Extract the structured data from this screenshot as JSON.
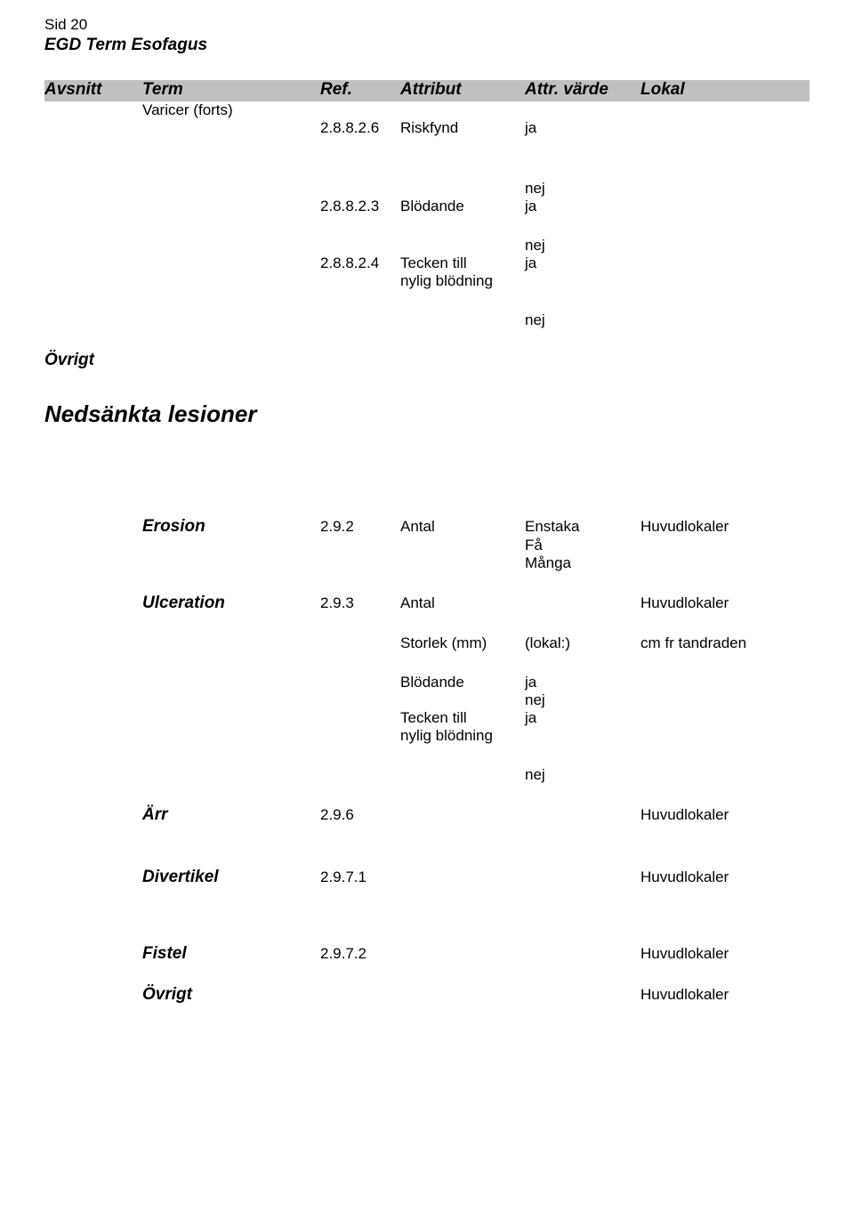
{
  "page": {
    "sid": "Sid 20",
    "doc_title": "EGD Term Esofagus"
  },
  "header": {
    "avsnitt": "Avsnitt",
    "term": "Term",
    "ref": "Ref.",
    "attribut": "Attribut",
    "attr_varde": "Attr. värde",
    "lokal": "Lokal"
  },
  "rows": {
    "varicer_term": "Varicer (forts)",
    "varicer": {
      "riskfynd_ref": "2.8.8.2.6",
      "riskfynd_attr": "Riskfynd",
      "riskfynd_val": "ja",
      "blodande_ref": "2.8.8.2.3",
      "blodande_attr": "Blödande",
      "blodande_val_nej": "nej",
      "blodande_val_ja": "ja",
      "tecken_ref": "2.8.8.2.4",
      "tecken_attr_l1": "Tecken till",
      "tecken_attr_l2": "nylig blödning",
      "tecken_val_nej": "nej",
      "tecken_val_ja": "ja",
      "tecken_trailing_nej": "nej"
    },
    "ovrigt1": "Övrigt",
    "section_nedsankta": "Nedsänkta lesioner",
    "erosion": {
      "term": "Erosion",
      "ref": "2.9.2",
      "attr": "Antal",
      "val1": "Enstaka",
      "val2": "Få",
      "val3": "Många",
      "lokal": "Huvudlokaler"
    },
    "ulceration": {
      "term": "Ulceration",
      "ref": "2.9.3",
      "attr": "Antal",
      "lokal": "Huvudlokaler",
      "storlek_attr": "Storlek (mm)",
      "storlek_val": "(lokal:)",
      "storlek_lokal": "cm fr tandraden",
      "blodande_attr": "Blödande",
      "blodande_ja": "ja",
      "blodande_nej": "nej",
      "tecken_l1": "Tecken till",
      "tecken_l2": "nylig blödning",
      "tecken_ja": "ja",
      "tecken_trailing_nej": "nej"
    },
    "arr": {
      "term": "Ärr",
      "ref": "2.9.6",
      "lokal": "Huvudlokaler"
    },
    "divertikel": {
      "term": "Divertikel",
      "ref": "2.9.7.1",
      "lokal": "Huvudlokaler"
    },
    "fistel": {
      "term": "Fistel",
      "ref": "2.9.7.2",
      "lokal": "Huvudlokaler"
    },
    "ovrigt2": {
      "term": "Övrigt",
      "lokal": "Huvudlokaler"
    }
  }
}
